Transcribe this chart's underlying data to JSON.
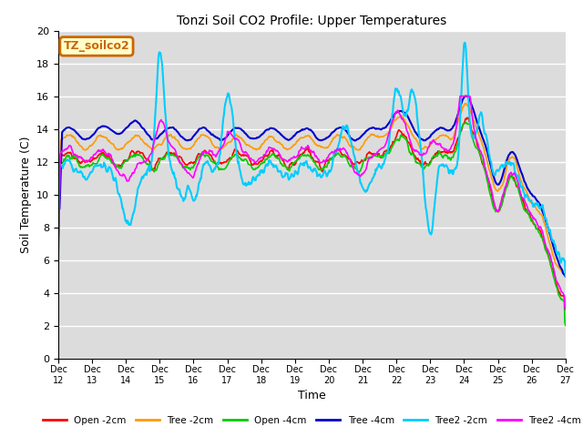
{
  "title": "Tonzi Soil CO2 Profile: Upper Temperatures",
  "xlabel": "Time",
  "ylabel": "Soil Temperature (C)",
  "ylim": [
    0,
    20
  ],
  "yticks": [
    0,
    2,
    4,
    6,
    8,
    10,
    12,
    14,
    16,
    18,
    20
  ],
  "bg_color": "#dcdcdc",
  "fig_color": "#ffffff",
  "label_box_text": "TZ_soilco2",
  "label_box_color": "#ffffcc",
  "label_box_border": "#cc6600",
  "series_names": [
    "Open -2cm",
    "Tree -2cm",
    "Open -4cm",
    "Tree -4cm",
    "Tree2 -2cm",
    "Tree2 -4cm"
  ],
  "series_colors": [
    "#ff0000",
    "#ff9900",
    "#00cc00",
    "#0000cc",
    "#00ccff",
    "#ff00ff"
  ],
  "series_lw": [
    1.2,
    1.2,
    1.2,
    1.5,
    1.5,
    1.2
  ],
  "xtick_labels": [
    "Dec 12",
    "Dec 13",
    "Dec 14",
    "Dec 15",
    "Dec 16",
    "Dec 17",
    "Dec 18",
    "Dec 19",
    "Dec 20",
    "Dec 21",
    "Dec 22",
    "Dec 23",
    "Dec 24",
    "Dec 25",
    "Dec 26",
    "Dec 27"
  ]
}
